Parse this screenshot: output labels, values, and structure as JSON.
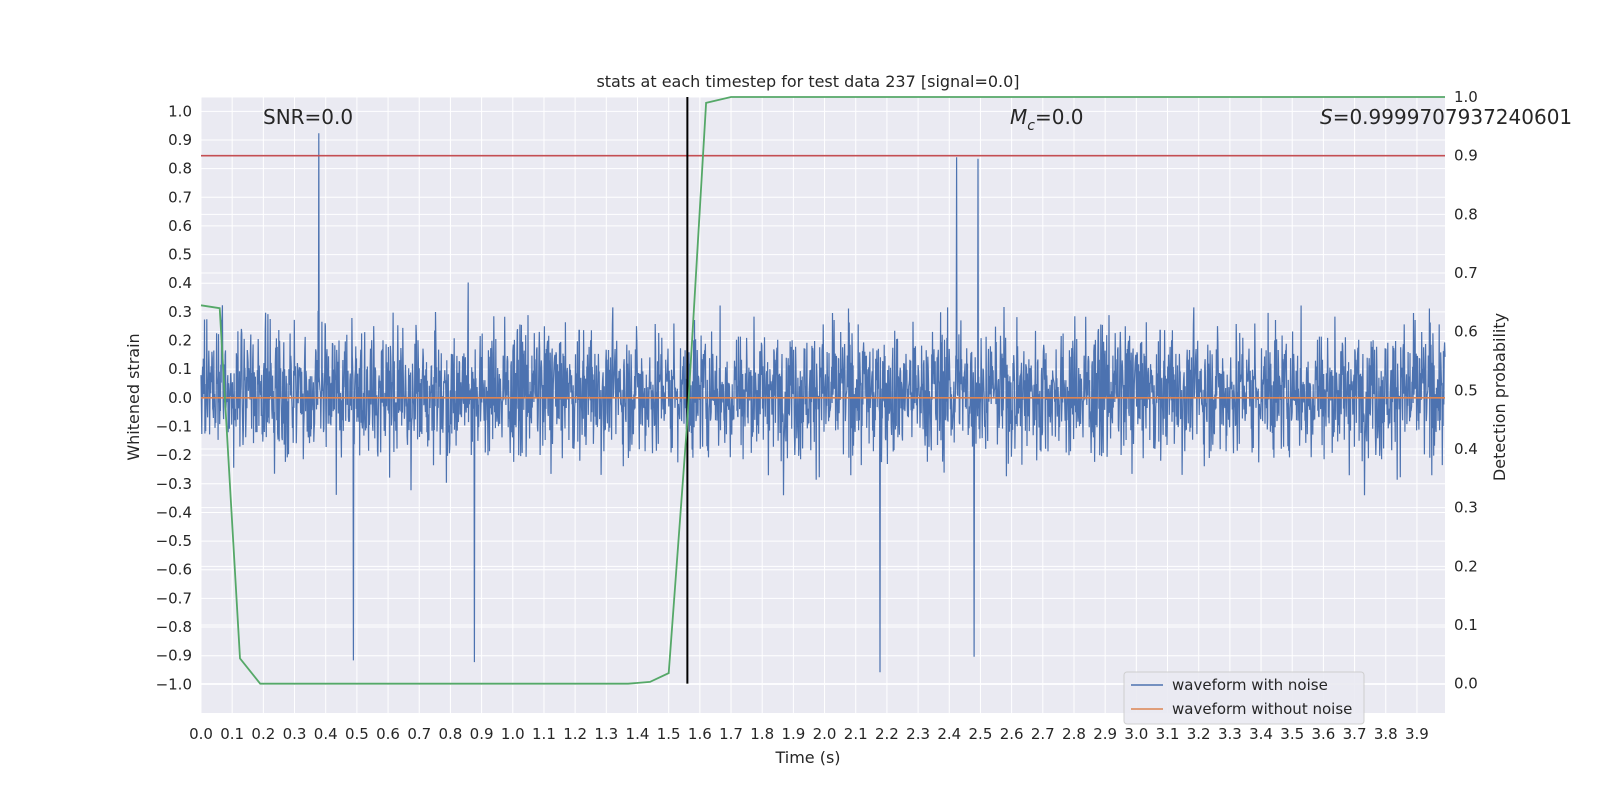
{
  "chart_data": {
    "type": "line",
    "title": "stats at each timestep for test data 237 [signal=0.0]",
    "xlabel": "Time (s)",
    "ylabel": "Whitened strain",
    "y2label": "Detection probability",
    "xlim": [
      0.0,
      3.99
    ],
    "ylim": [
      -1.1,
      1.05
    ],
    "y2lim": [
      -0.05,
      1.0
    ],
    "xticks": [
      "0.0",
      "0.1",
      "0.2",
      "0.3",
      "0.4",
      "0.5",
      "0.6",
      "0.7",
      "0.8",
      "0.9",
      "1.0",
      "1.1",
      "1.2",
      "1.3",
      "1.4",
      "1.5",
      "1.6",
      "1.7",
      "1.8",
      "1.9",
      "2.0",
      "2.1",
      "2.2",
      "2.3",
      "2.4",
      "2.5",
      "2.6",
      "2.7",
      "2.8",
      "2.9",
      "3.0",
      "3.1",
      "3.2",
      "3.3",
      "3.4",
      "3.5",
      "3.6",
      "3.7",
      "3.8",
      "3.9"
    ],
    "yticks": [
      "1.0",
      "0.9",
      "0.8",
      "0.7",
      "0.6",
      "0.5",
      "0.4",
      "0.3",
      "0.2",
      "0.1",
      "0.0",
      "−0.1",
      "−0.2",
      "−0.3",
      "−0.4",
      "−0.5",
      "−0.6",
      "−0.7",
      "−0.8",
      "−0.9",
      "−1.0"
    ],
    "y2ticks": [
      "1.0",
      "0.9",
      "0.8",
      "0.7",
      "0.6",
      "0.5",
      "0.4",
      "0.3",
      "0.2",
      "0.1",
      "0.0"
    ],
    "annotations": {
      "snr": "SNR=0.0",
      "mc_symbol": "M",
      "mc_sub": "c",
      "mc_value": "=0.0",
      "s_symbol": "S",
      "s_value": "=0.9999707937240601"
    },
    "series": [
      {
        "name": "waveform with noise",
        "color": "#4c72b0",
        "envelope": {
          "typical_range": [
            -0.45,
            0.5
          ],
          "extremes": [
            -1.0,
            0.95
          ]
        }
      },
      {
        "name": "waveform without noise",
        "color": "#dd8452",
        "constant": 0.0
      }
    ],
    "detection_probability": {
      "color": "#55a868",
      "x": [
        0.0,
        0.06,
        0.125,
        0.19,
        1.37,
        1.44,
        1.5,
        1.56,
        1.62,
        1.7,
        3.99
      ],
      "y": [
        0.645,
        0.64,
        0.043,
        0.0,
        0.0,
        0.003,
        0.018,
        0.45,
        0.99,
        1.0,
        1.0
      ]
    },
    "threshold": {
      "axis": "right",
      "value": 0.9,
      "color": "#c44e52"
    },
    "marker_line": {
      "x": 1.56,
      "color": "#000000"
    },
    "legend": {
      "position": "lower-right"
    }
  }
}
